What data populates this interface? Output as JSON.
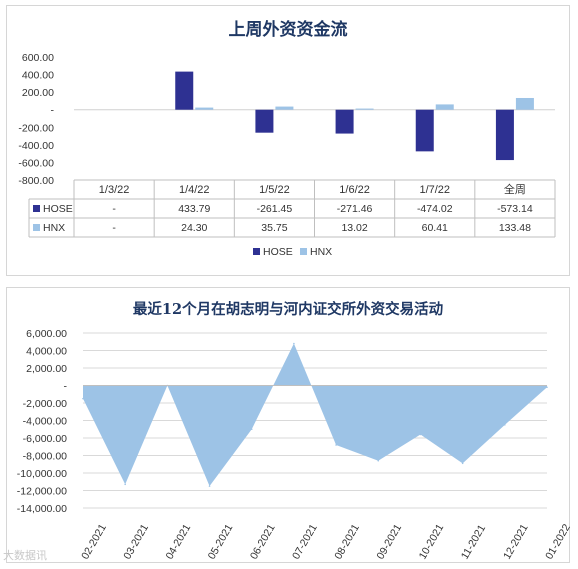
{
  "colors": {
    "hose": "#2e3192",
    "hnx": "#9dc3e6",
    "area": "#9dc3e6",
    "title": "#1f3864"
  },
  "watermark": "大数据讯",
  "chart_data": [
    {
      "type": "bar",
      "title": "上周外资资金流",
      "categories": [
        "1/3/22",
        "1/4/22",
        "1/5/22",
        "1/6/22",
        "1/7/22",
        "全周"
      ],
      "series": [
        {
          "name": "HOSE",
          "values": [
            null,
            433.79,
            -261.45,
            -271.46,
            -474.02,
            -573.14
          ],
          "labels": [
            "-",
            "433.79",
            "-261.45",
            "-271.46",
            "-474.02",
            "-573.14"
          ]
        },
        {
          "name": "HNX",
          "values": [
            null,
            24.3,
            35.75,
            13.02,
            60.41,
            133.48
          ],
          "labels": [
            "-",
            "24.30",
            "35.75",
            "13.02",
            "60.41",
            "133.48"
          ]
        }
      ],
      "ylim": [
        -800,
        600
      ],
      "yticks": [
        600,
        400,
        200,
        0,
        -200,
        -400,
        -600,
        -800
      ],
      "yticklabels": [
        "600.00",
        "400.00",
        "200.00",
        "-",
        "-200.00",
        "-400.00",
        "-600.00",
        "-800.00"
      ],
      "legend": "bottom",
      "data_table": true
    },
    {
      "type": "area",
      "title": "最近12个月在胡志明与河内证交所外资交易活动",
      "categories": [
        "02-2021",
        "03-2021",
        "04-2021",
        "05-2021",
        "06-2021",
        "07-2021",
        "08-2021",
        "09-2021",
        "10-2021",
        "11-2021",
        "12-2021",
        "01-2022"
      ],
      "values": [
        -1500,
        -11300,
        0,
        -11500,
        -5000,
        4800,
        -6800,
        -8600,
        -5600,
        -8900,
        -4500,
        -200
      ],
      "ylim": [
        -14000,
        6000
      ],
      "yticks": [
        6000,
        4000,
        2000,
        0,
        -2000,
        -4000,
        -6000,
        -8000,
        -10000,
        -12000,
        -14000
      ],
      "yticklabels": [
        "6,000.00",
        "4,000.00",
        "2,000.00",
        "-",
        "-2,000.00",
        "-4,000.00",
        "-6,000.00",
        "-8,000.00",
        "-10,000.00",
        "-12,000.00",
        "-14,000.00"
      ],
      "grid": true
    }
  ]
}
